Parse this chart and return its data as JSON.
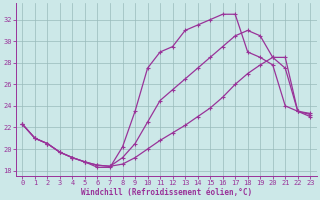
{
  "xlabel": "Windchill (Refroidissement éolien,°C)",
  "bg_color": "#cce8e8",
  "line_color": "#993399",
  "grid_color": "#99bbbb",
  "xlim": [
    -0.5,
    23.5
  ],
  "ylim": [
    17.5,
    33.5
  ],
  "xticks": [
    0,
    1,
    2,
    3,
    4,
    5,
    6,
    7,
    8,
    9,
    10,
    11,
    12,
    13,
    14,
    15,
    16,
    17,
    18,
    19,
    20,
    21,
    22,
    23
  ],
  "yticks": [
    18,
    20,
    22,
    24,
    26,
    28,
    30,
    32
  ],
  "curve1_x": [
    0,
    1,
    2,
    3,
    4,
    5,
    6,
    7,
    8,
    9,
    10,
    11,
    12,
    13,
    14,
    15,
    16,
    17,
    18,
    19,
    20,
    21,
    22,
    23
  ],
  "curve1_y": [
    22.3,
    21.0,
    20.5,
    19.7,
    19.2,
    18.8,
    18.3,
    18.3,
    20.2,
    23.5,
    27.5,
    29.0,
    29.5,
    31.0,
    31.5,
    32.0,
    32.5,
    32.5,
    29.0,
    28.5,
    27.8,
    24.0,
    23.5,
    23.3
  ],
  "curve2_x": [
    0,
    1,
    2,
    3,
    4,
    5,
    6,
    7,
    8,
    9,
    10,
    11,
    12,
    13,
    14,
    15,
    16,
    17,
    18,
    19,
    20,
    21,
    22,
    23
  ],
  "curve2_y": [
    22.3,
    21.0,
    20.5,
    19.7,
    19.2,
    18.8,
    18.5,
    18.4,
    19.2,
    20.5,
    22.5,
    24.5,
    25.5,
    26.5,
    27.5,
    28.5,
    29.5,
    30.5,
    31.0,
    30.5,
    28.5,
    27.5,
    23.5,
    23.0
  ],
  "curve3_x": [
    0,
    1,
    2,
    3,
    4,
    5,
    6,
    7,
    8,
    9,
    10,
    11,
    12,
    13,
    14,
    15,
    16,
    17,
    18,
    19,
    20,
    21,
    22,
    23
  ],
  "curve3_y": [
    22.3,
    21.0,
    20.5,
    19.7,
    19.2,
    18.8,
    18.5,
    18.4,
    18.6,
    19.2,
    20.0,
    20.8,
    21.5,
    22.2,
    23.0,
    23.8,
    24.8,
    26.0,
    27.0,
    27.8,
    28.5,
    28.5,
    23.5,
    23.2
  ]
}
